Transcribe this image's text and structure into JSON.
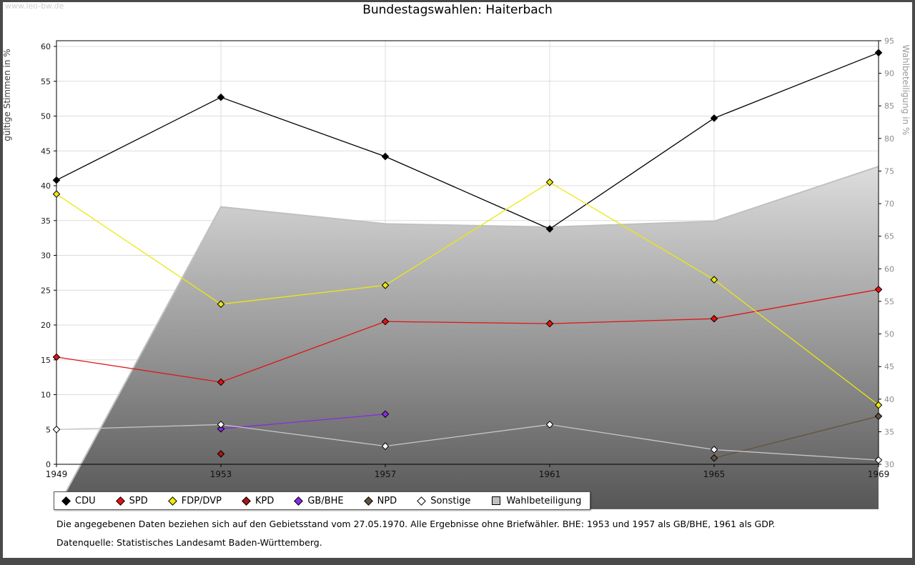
{
  "watermark": "www.leo-bw.de",
  "title": "Bundestagswahlen: Haiterbach",
  "footnotes": {
    "line1": "Die angegebenen Daten beziehen sich auf den Gebietsstand vom 27.05.1970. Alle Ergebnisse ohne Briefwähler. BHE: 1953 und 1957 als GB/BHE, 1961 als GDP.",
    "line2": "Datenquelle: Statistisches Landesamt Baden-Württemberg."
  },
  "chart_data": {
    "type": "line",
    "title": "Bundestagswahlen: Haiterbach",
    "x": [
      1949,
      1953,
      1957,
      1961,
      1965,
      1969
    ],
    "left_axis": {
      "label": "gültige Stimmen in %",
      "min": 0,
      "max": 60,
      "tick_step": 5
    },
    "right_axis": {
      "label": "Wahlbeteiligung in %",
      "min": 30,
      "max": 95,
      "tick_step": 5
    },
    "grid": true,
    "legend_position": "bottom",
    "series": [
      {
        "name": "CDU",
        "axis": "left",
        "marker": "diamond",
        "color": "#000000",
        "values": [
          40.8,
          52.7,
          44.2,
          33.8,
          49.7,
          59.1
        ]
      },
      {
        "name": "SPD",
        "axis": "left",
        "marker": "diamond",
        "color": "#e01414",
        "values": [
          15.4,
          11.8,
          20.5,
          20.2,
          20.9,
          25.1
        ]
      },
      {
        "name": "FDP/DVP",
        "axis": "left",
        "marker": "diamond",
        "color": "#ebe80f",
        "values": [
          38.8,
          23.0,
          25.7,
          40.5,
          26.5,
          8.5
        ]
      },
      {
        "name": "KPD",
        "axis": "left",
        "marker": "diamond",
        "color": "#a51515",
        "values": [
          null,
          1.5,
          null,
          null,
          null,
          null
        ]
      },
      {
        "name": "GB/BHE",
        "axis": "left",
        "marker": "diamond",
        "color": "#8a2be2",
        "values": [
          null,
          5.1,
          7.2,
          null,
          null,
          null
        ]
      },
      {
        "name": "NPD",
        "axis": "left",
        "marker": "diamond",
        "color": "#64523e",
        "values": [
          null,
          null,
          null,
          null,
          0.9,
          6.9
        ]
      },
      {
        "name": "Sonstige",
        "axis": "left",
        "marker": "diamond",
        "color": "#c8c8c8",
        "marker_fill": "#ffffff",
        "values": [
          5.0,
          5.7,
          2.6,
          5.7,
          2.1,
          0.6
        ]
      },
      {
        "name": "Wahlbeteiligung",
        "axis": "right",
        "type": "area",
        "color_top": "#dedede",
        "color_bottom": "#555555",
        "edge_color": "#c0c0c0",
        "swatch": "#c0c0c0",
        "values": [
          23.1,
          69.5,
          66.9,
          66.4,
          67.3,
          75.7
        ]
      }
    ]
  }
}
